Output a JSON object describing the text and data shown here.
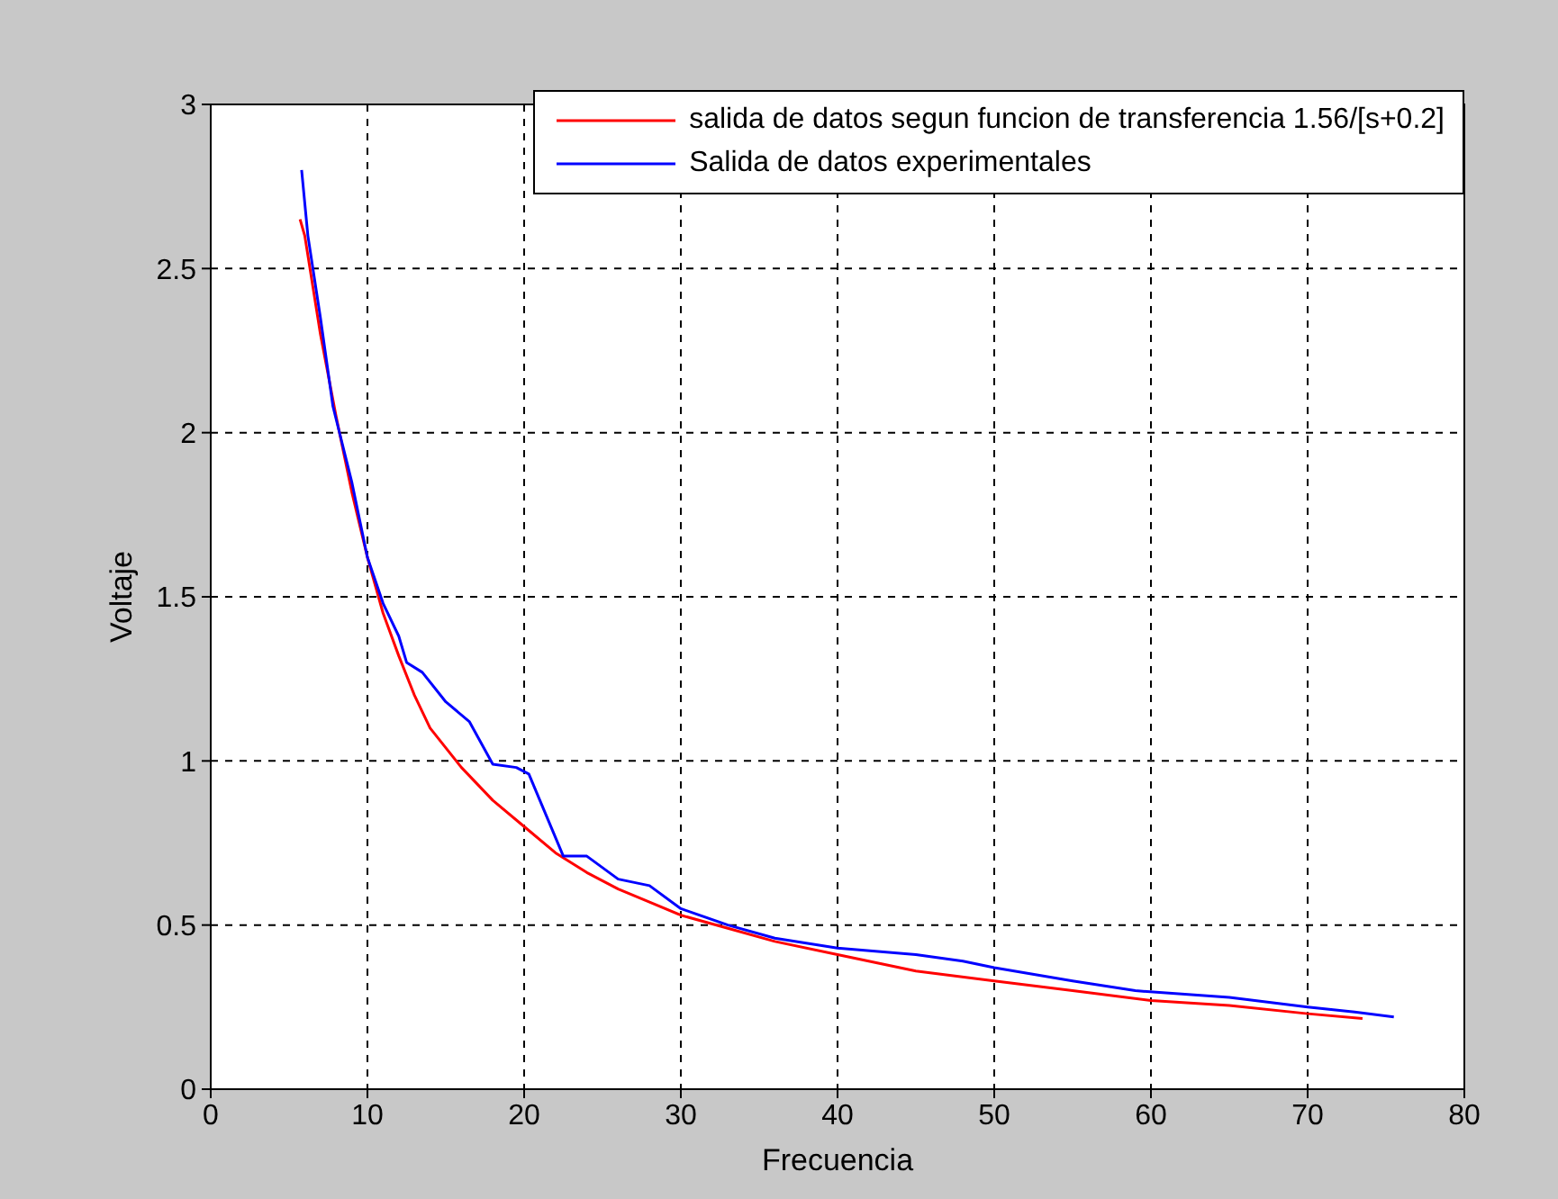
{
  "chart_data": {
    "type": "line",
    "xlabel": "Frecuencia",
    "ylabel": "Voltaje",
    "xlim": [
      0,
      80
    ],
    "xticks": [
      0,
      10,
      20,
      30,
      40,
      50,
      60,
      70,
      80
    ],
    "ylim": [
      0,
      3
    ],
    "yticks": [
      0,
      0.5,
      1,
      1.5,
      2,
      2.5,
      3
    ],
    "grid": true,
    "legend": "top right",
    "line_style": "solid",
    "series": [
      {
        "name": "salida de datos segun funcion de transferencia 1.56/[s+0.2]",
        "color": "#ff0000",
        "x": [
          5.7,
          6,
          7,
          8,
          9,
          10,
          11,
          12,
          13,
          14,
          16,
          18,
          20,
          22,
          24,
          26,
          28,
          30,
          33,
          36,
          40,
          45,
          50,
          55,
          60,
          65,
          70,
          73.5
        ],
        "values": [
          2.65,
          2.6,
          2.3,
          2.05,
          1.82,
          1.62,
          1.45,
          1.32,
          1.2,
          1.1,
          0.98,
          0.88,
          0.8,
          0.72,
          0.66,
          0.61,
          0.57,
          0.53,
          0.49,
          0.45,
          0.41,
          0.36,
          0.33,
          0.3,
          0.27,
          0.255,
          0.23,
          0.215
        ]
      },
      {
        "name": "Salida de datos experimentales",
        "color": "#0000ff",
        "x": [
          5.8,
          6.2,
          7,
          7.8,
          9,
          10,
          11,
          12,
          12.5,
          13.5,
          15,
          16.5,
          18,
          19.5,
          20.3,
          22.5,
          24,
          26,
          28,
          30,
          33,
          36,
          40,
          45,
          48,
          50,
          55,
          59,
          65,
          70,
          73,
          75.5
        ],
        "values": [
          2.8,
          2.6,
          2.35,
          2.08,
          1.85,
          1.62,
          1.48,
          1.38,
          1.3,
          1.27,
          1.18,
          1.12,
          0.99,
          0.98,
          0.96,
          0.71,
          0.71,
          0.64,
          0.62,
          0.55,
          0.5,
          0.46,
          0.43,
          0.41,
          0.39,
          0.37,
          0.33,
          0.3,
          0.28,
          0.25,
          0.235,
          0.22
        ]
      }
    ]
  }
}
